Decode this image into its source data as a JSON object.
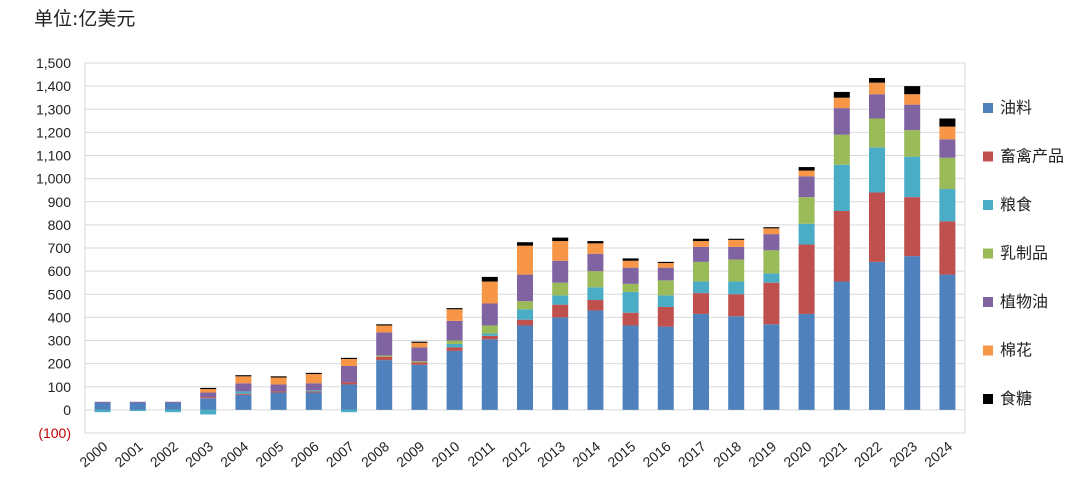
{
  "unit_label": "单位:亿美元",
  "chart_data": {
    "type": "bar",
    "stacked": true,
    "categories": [
      "2000",
      "2001",
      "2002",
      "2003",
      "2004",
      "2005",
      "2006",
      "2007",
      "2008",
      "2009",
      "2010",
      "2011",
      "2012",
      "2013",
      "2014",
      "2015",
      "2016",
      "2017",
      "2018",
      "2019",
      "2020",
      "2021",
      "2022",
      "2023",
      "2024"
    ],
    "ylim": [
      -100,
      1500
    ],
    "yticks": [
      -100,
      0,
      100,
      200,
      300,
      400,
      500,
      600,
      700,
      800,
      900,
      1000,
      1100,
      1200,
      1300,
      1400,
      1500
    ],
    "ytick_labels": [
      "(100)",
      "0",
      "100",
      "200",
      "300",
      "400",
      "500",
      "600",
      "700",
      "800",
      "900",
      "1,000",
      "1,100",
      "1,200",
      "1,300",
      "1,400",
      "1,500"
    ],
    "grid": true,
    "legend_position": "right",
    "series": [
      {
        "name": "油料",
        "color": "#4f81bd",
        "values": [
          30,
          30,
          30,
          50,
          65,
          75,
          75,
          110,
          215,
          195,
          255,
          305,
          365,
          400,
          430,
          365,
          360,
          415,
          405,
          370,
          415,
          555,
          640,
          665,
          585
        ]
      },
      {
        "name": "畜禽产品",
        "color": "#c0504d",
        "values": [
          0,
          0,
          0,
          5,
          5,
          5,
          5,
          10,
          15,
          10,
          15,
          15,
          25,
          55,
          45,
          55,
          85,
          90,
          95,
          180,
          300,
          305,
          300,
          255,
          230
        ]
      },
      {
        "name": "粮食",
        "color": "#4bacc6",
        "values": [
          -10,
          -5,
          -10,
          -20,
          10,
          0,
          5,
          -10,
          0,
          0,
          15,
          10,
          45,
          40,
          55,
          90,
          50,
          50,
          55,
          40,
          90,
          200,
          195,
          175,
          140
        ]
      },
      {
        "name": "乳制品",
        "color": "#9bbb59",
        "values": [
          0,
          0,
          0,
          0,
          0,
          0,
          0,
          0,
          5,
          5,
          15,
          35,
          35,
          55,
          70,
          35,
          65,
          85,
          95,
          100,
          115,
          130,
          125,
          115,
          135
        ]
      },
      {
        "name": "植物油",
        "color": "#8064a2",
        "values": [
          5,
          5,
          5,
          20,
          35,
          30,
          30,
          70,
          100,
          60,
          85,
          95,
          115,
          95,
          75,
          70,
          55,
          65,
          55,
          70,
          90,
          115,
          105,
          110,
          80
        ]
      },
      {
        "name": "棉花",
        "color": "#f79646",
        "values": [
          0,
          0,
          0,
          15,
          30,
          30,
          40,
          30,
          30,
          20,
          50,
          95,
          125,
          85,
          45,
          30,
          20,
          25,
          30,
          25,
          25,
          45,
          50,
          45,
          55
        ]
      },
      {
        "name": "食糖",
        "color": "#000000",
        "values": [
          0,
          0,
          0,
          5,
          5,
          5,
          5,
          5,
          5,
          5,
          5,
          20,
          15,
          15,
          10,
          10,
          5,
          10,
          5,
          5,
          15,
          25,
          20,
          35,
          35
        ]
      }
    ]
  }
}
